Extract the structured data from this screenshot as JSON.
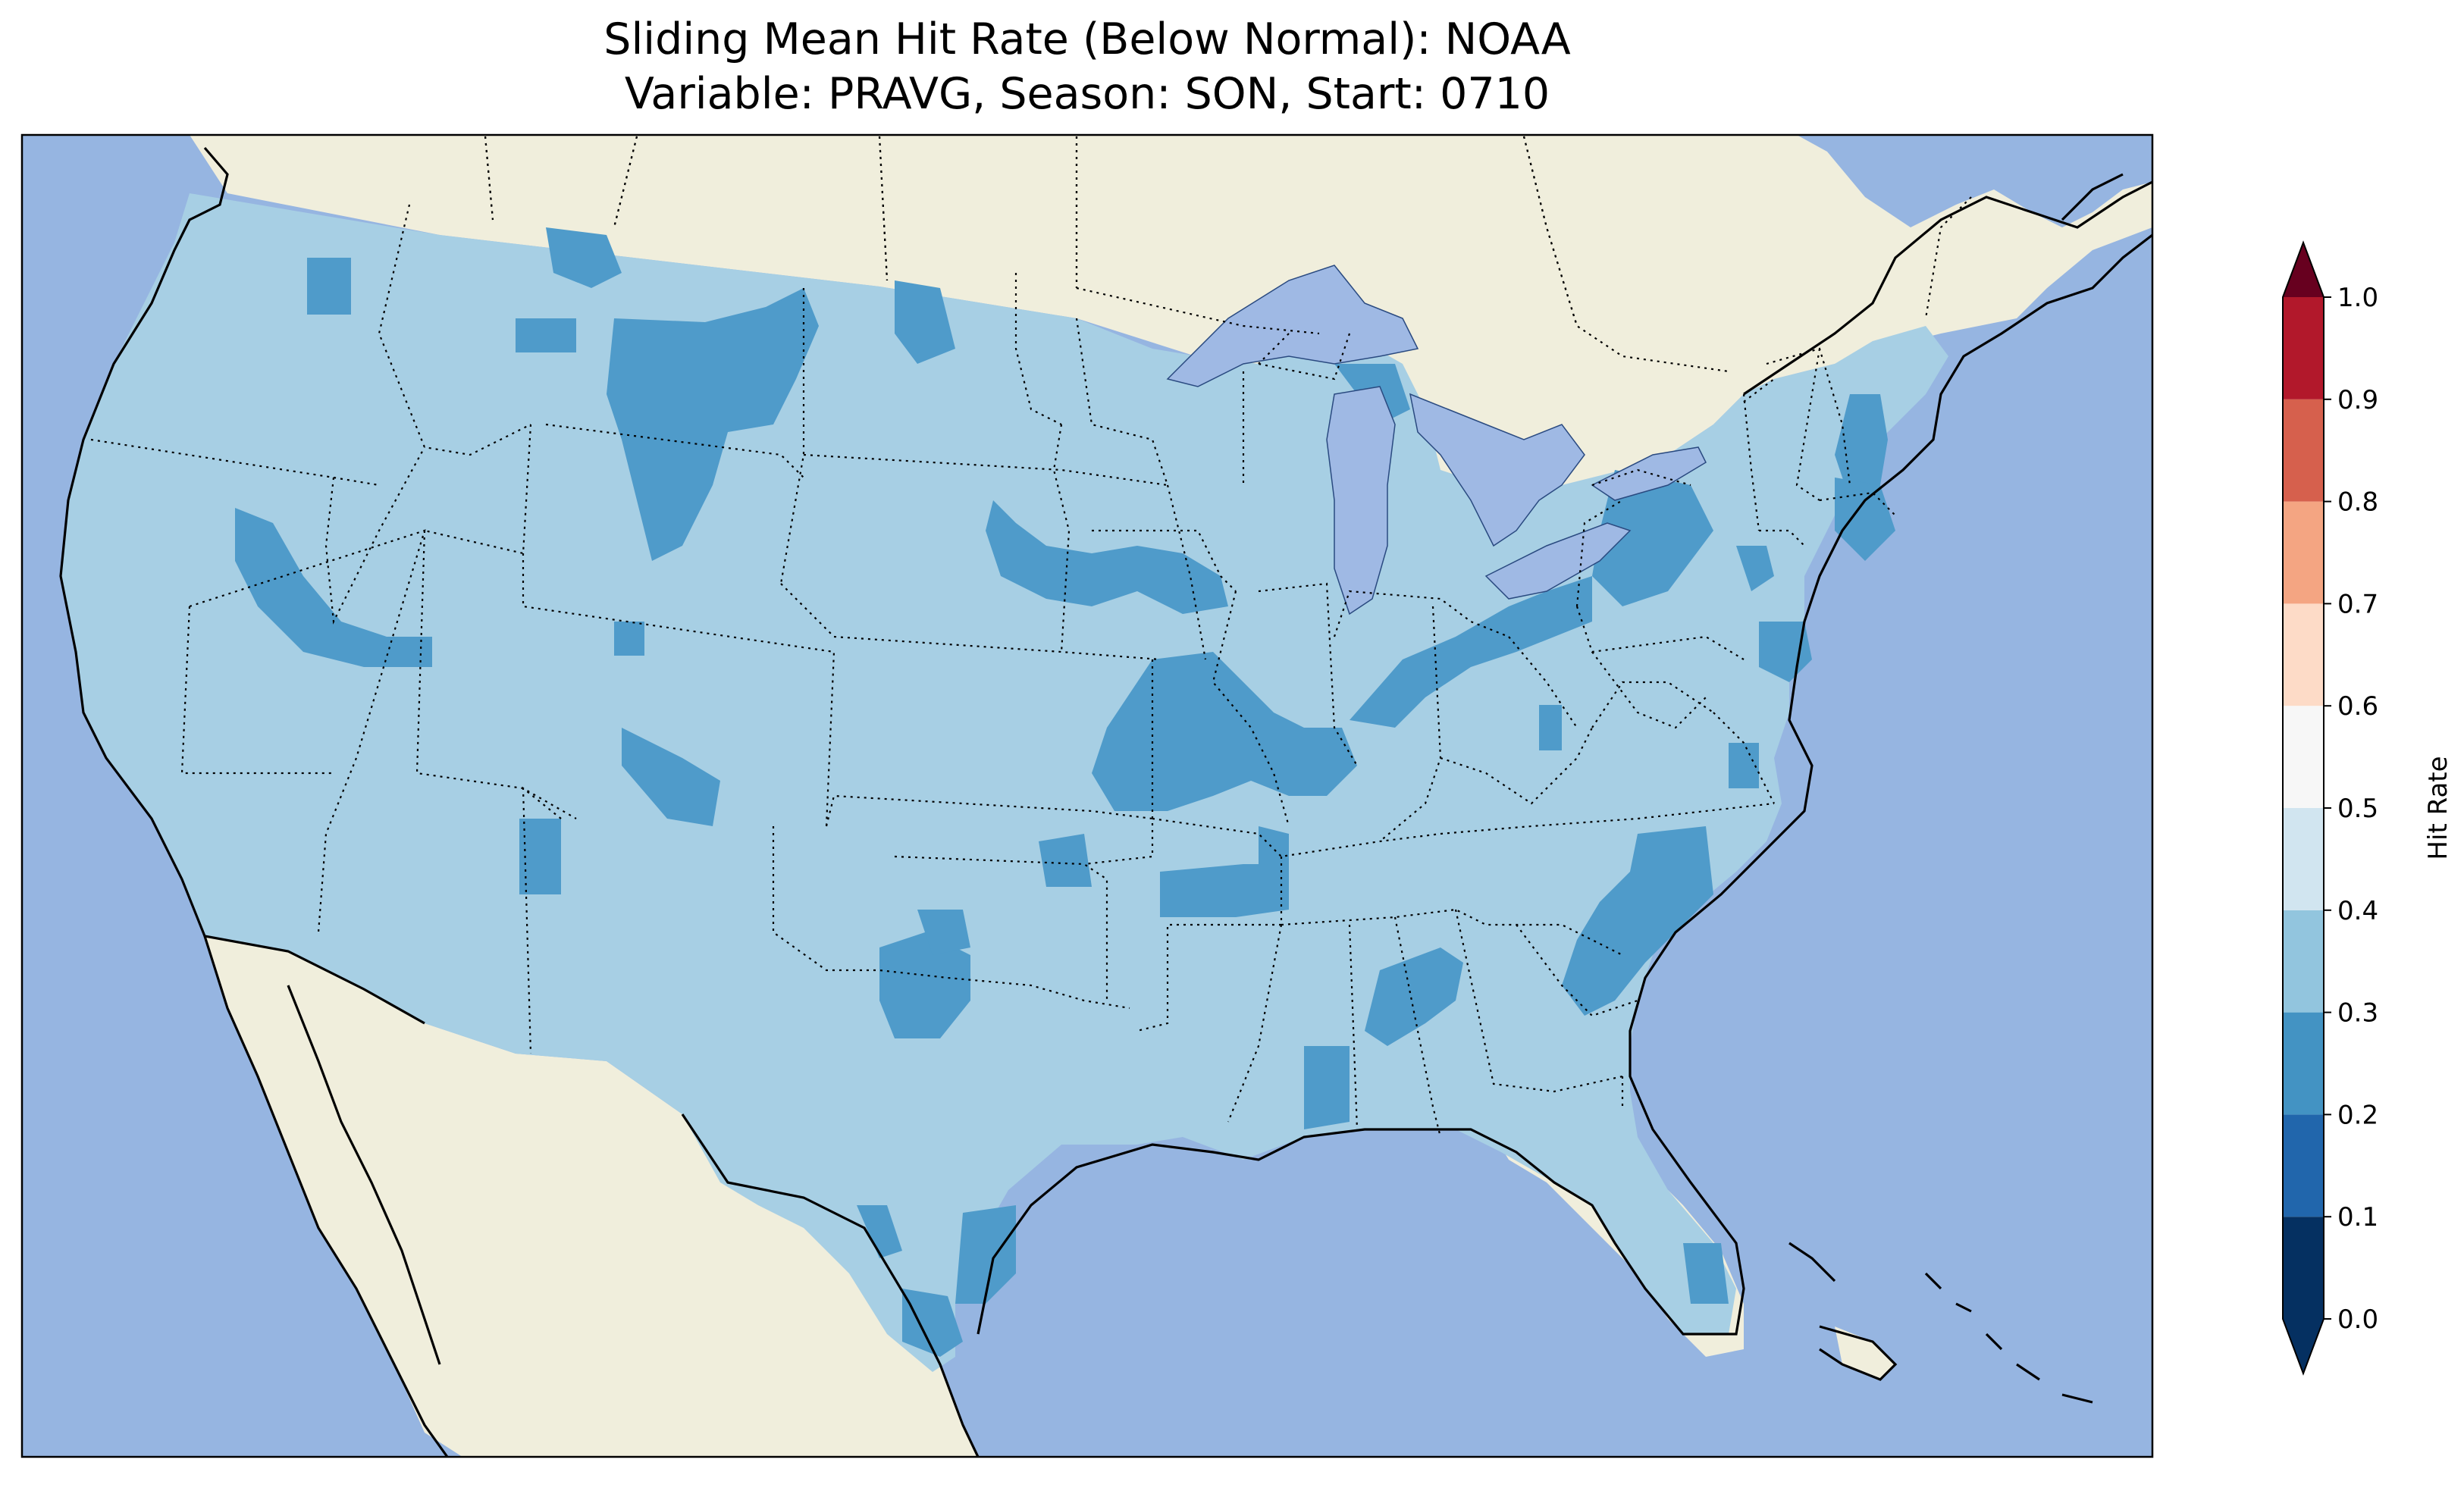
{
  "title_line1": "Sliding Mean Hit Rate (Below Normal): NOAA",
  "title_line2": "Variable: PRAVG, Season: SON, Start: 0710",
  "colors": {
    "ocean": "#96b5e1",
    "land": "#f0eedc",
    "lake": "#9fb9e4",
    "fill_03_04": "#a7cfe4",
    "fill_02_03": "#4f9bca"
  },
  "colorbar": {
    "label": "Hit Rate",
    "ticks": [
      "0.0",
      "0.1",
      "0.2",
      "0.3",
      "0.4",
      "0.5",
      "0.6",
      "0.7",
      "0.8",
      "0.9",
      "1.0"
    ],
    "bins": [
      {
        "from": 0.0,
        "to": 0.1,
        "color": "#053061"
      },
      {
        "from": 0.1,
        "to": 0.2,
        "color": "#2166ac"
      },
      {
        "from": 0.2,
        "to": 0.3,
        "color": "#4393c3"
      },
      {
        "from": 0.3,
        "to": 0.4,
        "color": "#92c5de"
      },
      {
        "from": 0.4,
        "to": 0.5,
        "color": "#d1e5f0"
      },
      {
        "from": 0.5,
        "to": 0.6,
        "color": "#f7f7f7"
      },
      {
        "from": 0.6,
        "to": 0.7,
        "color": "#fddbc7"
      },
      {
        "from": 0.7,
        "to": 0.8,
        "color": "#f4a582"
      },
      {
        "from": 0.8,
        "to": 0.9,
        "color": "#d6604d"
      },
      {
        "from": 0.9,
        "to": 1.0,
        "color": "#b2182b"
      }
    ],
    "extend_low_color": "#053061",
    "extend_high_color": "#67001f"
  }
}
